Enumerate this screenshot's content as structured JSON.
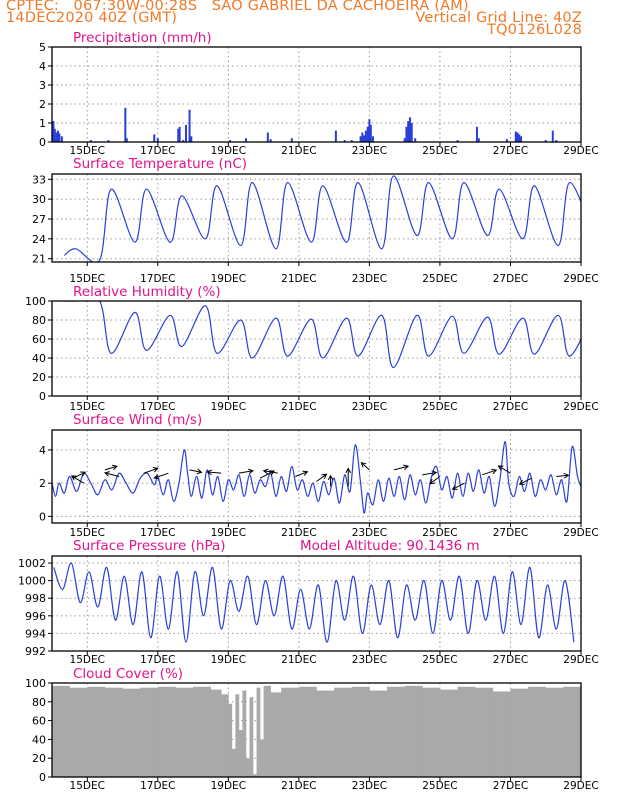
{
  "header": {
    "left_line1": "CPTEC:   067:30W-00:28S   SAO GABRIEL DA CACHOEIRA (AM)",
    "left_line2": "14DEC2020 40Z (GMT)",
    "right_line2": "Vertical Grid Line: 40Z",
    "right_line3": "TQ0126L028"
  },
  "colors": {
    "header": "#f07a28",
    "panel_title": "#e0148c",
    "series": "#2a3fd8",
    "cloud": "#a9a9a9",
    "grid": "#9a9a9a"
  },
  "x_tick_labels": [
    "15DEC",
    "17DEC",
    "19DEC",
    "21DEC",
    "23DEC",
    "25DEC",
    "27DEC",
    "29DEC"
  ],
  "chart_data": [
    {
      "type": "bar",
      "title": "Precipitation (mm/h)",
      "ylim": [
        0,
        5
      ],
      "yticks": [
        0,
        1,
        2,
        3,
        4,
        5
      ],
      "x_range_days": [
        14,
        29
      ],
      "x_tick_days": [
        15,
        17,
        19,
        21,
        23,
        25,
        27,
        29
      ],
      "points": [
        [
          14.04,
          1.1
        ],
        [
          14.08,
          0.7
        ],
        [
          14.13,
          0.5
        ],
        [
          14.17,
          0.6
        ],
        [
          14.21,
          0.45
        ],
        [
          14.28,
          0.3
        ],
        [
          15.1,
          0.1
        ],
        [
          15.6,
          0.1
        ],
        [
          16.08,
          1.8
        ],
        [
          16.12,
          0.2
        ],
        [
          16.9,
          0.4
        ],
        [
          17.0,
          0.2
        ],
        [
          17.58,
          0.7
        ],
        [
          17.62,
          0.8
        ],
        [
          17.72,
          0.1
        ],
        [
          17.8,
          0.9
        ],
        [
          17.9,
          1.7
        ],
        [
          17.95,
          0.3
        ],
        [
          19.05,
          0.1
        ],
        [
          19.5,
          0.2
        ],
        [
          20.12,
          0.5
        ],
        [
          20.2,
          0.15
        ],
        [
          20.8,
          0.2
        ],
        [
          22.05,
          0.6
        ],
        [
          22.3,
          0.1
        ],
        [
          22.5,
          0.1
        ],
        [
          22.75,
          0.3
        ],
        [
          22.8,
          0.5
        ],
        [
          22.85,
          0.35
        ],
        [
          22.9,
          0.6
        ],
        [
          22.95,
          0.8
        ],
        [
          23.0,
          1.2
        ],
        [
          23.04,
          0.9
        ],
        [
          23.1,
          0.3
        ],
        [
          24.0,
          0.2
        ],
        [
          24.05,
          0.8
        ],
        [
          24.1,
          1.1
        ],
        [
          24.15,
          1.3
        ],
        [
          24.2,
          1.0
        ],
        [
          24.3,
          0.2
        ],
        [
          25.5,
          0.1
        ],
        [
          26.05,
          0.8
        ],
        [
          26.1,
          0.2
        ],
        [
          26.9,
          0.15
        ],
        [
          27.15,
          0.55
        ],
        [
          27.2,
          0.5
        ],
        [
          27.25,
          0.4
        ],
        [
          27.3,
          0.3
        ],
        [
          28.0,
          0.1
        ],
        [
          28.2,
          0.6
        ],
        [
          28.3,
          0.1
        ]
      ]
    },
    {
      "type": "line",
      "title": "Surface Temperature (nC)",
      "ylim": [
        20.5,
        33.8
      ],
      "yticks": [
        21,
        24,
        27,
        30,
        33
      ],
      "x_range_days": [
        14,
        29
      ],
      "x_tick_days": [
        15,
        17,
        19,
        21,
        23,
        25,
        27,
        29
      ],
      "daily": {
        "start_day": 14,
        "peak_offset": 0.68,
        "trough_offset": 0.35,
        "peaks": [
          22.5,
          31.5,
          31.5,
          30.5,
          32.0,
          32.5,
          32.5,
          32.0,
          32.5,
          33.5,
          32.5,
          32.5,
          31.5,
          32.0,
          32.5,
          33.5
        ],
        "troughs": [
          21.5,
          20.8,
          23.5,
          23.5,
          24.0,
          23.0,
          22.5,
          23.5,
          23.5,
          22.5,
          24.5,
          24.0,
          24.5,
          24.0,
          23.0,
          24.5
        ]
      }
    },
    {
      "type": "line",
      "title": "Relative Humidity (%)",
      "ylim": [
        0,
        100
      ],
      "yticks": [
        0,
        20,
        40,
        60,
        80,
        100
      ],
      "x_range_days": [
        14,
        29
      ],
      "x_tick_days": [
        15,
        17,
        19,
        21,
        23,
        25,
        27,
        29
      ],
      "daily": {
        "start_day": 14,
        "peak_offset": 0.35,
        "trough_offset": 0.68,
        "peaks": [
          100,
          100,
          88,
          85,
          95,
          80,
          82,
          81,
          82,
          85,
          85,
          84,
          83,
          82,
          85,
          88
        ],
        "troughs": [
          100,
          45,
          48,
          52,
          45,
          40,
          42,
          40,
          42,
          30,
          42,
          45,
          44,
          44,
          42,
          35
        ]
      }
    },
    {
      "type": "line",
      "title": "Surface Wind (m/s)",
      "ylim": [
        -0.4,
        5.2
      ],
      "yticks": [
        0,
        2,
        4
      ],
      "x_range_days": [
        14,
        29
      ],
      "x_tick_days": [
        15,
        17,
        19,
        21,
        23,
        25,
        27,
        29
      ],
      "points": [
        [
          14.0,
          2.0
        ],
        [
          14.1,
          1.2
        ],
        [
          14.2,
          2.0
        ],
        [
          14.35,
          1.4
        ],
        [
          14.5,
          2.4
        ],
        [
          14.7,
          1.5
        ],
        [
          14.9,
          2.6
        ],
        [
          15.1,
          2.0
        ],
        [
          15.3,
          1.3
        ],
        [
          15.5,
          2.2
        ],
        [
          15.7,
          1.6
        ],
        [
          15.9,
          2.6
        ],
        [
          16.1,
          2.0
        ],
        [
          16.3,
          1.4
        ],
        [
          16.5,
          2.3
        ],
        [
          16.7,
          2.6
        ],
        [
          16.9,
          1.9
        ],
        [
          17.0,
          2.4
        ],
        [
          17.15,
          1.3
        ],
        [
          17.3,
          2.2
        ],
        [
          17.45,
          0.9
        ],
        [
          17.6,
          2.0
        ],
        [
          17.75,
          4.0
        ],
        [
          17.85,
          2.5
        ],
        [
          17.95,
          1.2
        ],
        [
          18.1,
          2.4
        ],
        [
          18.25,
          1.1
        ],
        [
          18.4,
          2.8
        ],
        [
          18.55,
          1.3
        ],
        [
          18.7,
          2.4
        ],
        [
          18.85,
          0.9
        ],
        [
          19.0,
          2.2
        ],
        [
          19.15,
          1.6
        ],
        [
          19.3,
          2.5
        ],
        [
          19.45,
          1.2
        ],
        [
          19.6,
          2.5
        ],
        [
          19.75,
          1.4
        ],
        [
          19.9,
          2.2
        ],
        [
          20.05,
          1.8
        ],
        [
          20.2,
          2.6
        ],
        [
          20.35,
          1.2
        ],
        [
          20.5,
          2.4
        ],
        [
          20.65,
          1.5
        ],
        [
          20.8,
          3.0
        ],
        [
          20.95,
          1.6
        ],
        [
          21.1,
          2.2
        ],
        [
          21.25,
          1.2
        ],
        [
          21.4,
          2.0
        ],
        [
          21.55,
          0.9
        ],
        [
          21.7,
          2.1
        ],
        [
          21.85,
          1.3
        ],
        [
          22.0,
          2.3
        ],
        [
          22.15,
          0.8
        ],
        [
          22.3,
          2.5
        ],
        [
          22.45,
          1.5
        ],
        [
          22.6,
          4.3
        ],
        [
          22.75,
          2.0
        ],
        [
          22.85,
          0.2
        ],
        [
          22.95,
          1.4
        ],
        [
          23.1,
          0.7
        ],
        [
          23.25,
          2.2
        ],
        [
          23.4,
          0.9
        ],
        [
          23.55,
          2.3
        ],
        [
          23.7,
          1.2
        ],
        [
          23.85,
          2.4
        ],
        [
          24.0,
          1.0
        ],
        [
          24.15,
          2.5
        ],
        [
          24.3,
          1.3
        ],
        [
          24.45,
          2.2
        ],
        [
          24.6,
          0.8
        ],
        [
          24.75,
          2.3
        ],
        [
          24.9,
          3.0
        ],
        [
          25.05,
          1.6
        ],
        [
          25.2,
          2.4
        ],
        [
          25.35,
          1.1
        ],
        [
          25.5,
          2.6
        ],
        [
          25.65,
          1.2
        ],
        [
          25.8,
          2.6
        ],
        [
          25.95,
          1.5
        ],
        [
          26.1,
          2.8
        ],
        [
          26.25,
          1.4
        ],
        [
          26.4,
          2.4
        ],
        [
          26.55,
          0.6
        ],
        [
          26.7,
          2.2
        ],
        [
          26.85,
          4.5
        ],
        [
          26.95,
          2.0
        ],
        [
          27.1,
          1.2
        ],
        [
          27.25,
          2.4
        ],
        [
          27.4,
          1.5
        ],
        [
          27.55,
          2.6
        ],
        [
          27.7,
          1.2
        ],
        [
          27.85,
          2.2
        ],
        [
          28.0,
          1.6
        ],
        [
          28.15,
          2.5
        ],
        [
          28.3,
          1.3
        ],
        [
          28.45,
          2.2
        ],
        [
          28.6,
          0.9
        ],
        [
          28.75,
          4.2
        ],
        [
          28.9,
          2.4
        ],
        [
          29.0,
          1.8
        ]
      ],
      "arrows": [
        [
          14.6,
          2.3,
          0.3,
          0.25
        ],
        [
          14.9,
          2.0,
          -0.3,
          0.3
        ],
        [
          15.5,
          2.8,
          0.3,
          0.15
        ],
        [
          15.9,
          2.4,
          -0.35,
          0.15
        ],
        [
          16.6,
          2.6,
          0.35,
          0.2
        ],
        [
          17.3,
          2.6,
          -0.35,
          -0.2
        ],
        [
          17.9,
          2.8,
          0.3,
          -0.1
        ],
        [
          18.8,
          2.6,
          -0.35,
          0.05
        ],
        [
          19.3,
          2.6,
          0.35,
          0.1
        ],
        [
          19.9,
          2.3,
          0.35,
          0.3
        ],
        [
          20.4,
          2.6,
          -0.35,
          0.1
        ],
        [
          20.9,
          2.4,
          0.3,
          0.2
        ],
        [
          21.5,
          2.1,
          0.25,
          0.3
        ],
        [
          21.9,
          1.8,
          0.0,
          0.45
        ],
        [
          22.4,
          1.8,
          0.0,
          0.75
        ],
        [
          23.0,
          2.8,
          -0.2,
          0.3
        ],
        [
          23.7,
          2.8,
          0.35,
          0.15
        ],
        [
          24.5,
          2.5,
          0.35,
          0.1
        ],
        [
          25.0,
          2.4,
          -0.25,
          -0.3
        ],
        [
          25.7,
          2.0,
          -0.3,
          -0.25
        ],
        [
          26.2,
          2.5,
          0.35,
          0.2
        ],
        [
          27.0,
          2.6,
          -0.3,
          0.3
        ],
        [
          27.6,
          2.3,
          -0.3,
          -0.25
        ],
        [
          28.3,
          2.4,
          0.3,
          0.05
        ]
      ]
    },
    {
      "type": "line",
      "title": "Surface Pressure (hPa)",
      "annotation": "Model Altitude: 90.1436 m",
      "ylim": [
        992,
        1002.8
      ],
      "yticks": [
        992,
        994,
        996,
        998,
        1000,
        1002
      ],
      "x_range_days": [
        14,
        29
      ],
      "x_tick_days": [
        15,
        17,
        19,
        21,
        23,
        25,
        27,
        29
      ],
      "semi_diurnal": {
        "start_day": 14,
        "max_offsets": [
          0.55,
          1.05
        ],
        "min_offsets": [
          0.8,
          1.3
        ],
        "max": [
          1002.0,
          1001.5,
          1001.0,
          1001.0,
          1001.5,
          1000.5,
          1000.5,
          999.5,
          1000.5,
          1000.0,
          1000.0,
          1000.5,
          1000.5,
          1001.5,
          1000.0
        ],
        "min": [
          997.5,
          995.5,
          993.5,
          993.0,
          994.5,
          995.0,
          994.5,
          993.0,
          994.0,
          993.5,
          994.0,
          994.0,
          994.0,
          993.5,
          993.0
        ]
      }
    },
    {
      "type": "bar",
      "title": "Cloud Cover (%)",
      "ylim": [
        0,
        100
      ],
      "yticks": [
        0,
        20,
        40,
        60,
        80,
        100
      ],
      "x_range_days": [
        14,
        29
      ],
      "x_tick_days": [
        15,
        17,
        19,
        21,
        23,
        25,
        27,
        29
      ],
      "segments": [
        [
          14.0,
          97
        ],
        [
          14.5,
          95
        ],
        [
          15.0,
          96
        ],
        [
          15.5,
          95
        ],
        [
          16.0,
          94
        ],
        [
          16.5,
          95
        ],
        [
          17.0,
          96
        ],
        [
          17.5,
          95
        ],
        [
          18.0,
          96
        ],
        [
          18.5,
          93
        ],
        [
          18.8,
          88
        ],
        [
          19.0,
          78
        ],
        [
          19.1,
          30
        ],
        [
          19.2,
          88
        ],
        [
          19.3,
          50
        ],
        [
          19.4,
          92
        ],
        [
          19.5,
          20
        ],
        [
          19.6,
          85
        ],
        [
          19.7,
          3
        ],
        [
          19.8,
          95
        ],
        [
          19.9,
          40
        ],
        [
          20.0,
          97
        ],
        [
          20.2,
          90
        ],
        [
          20.5,
          95
        ],
        [
          21.0,
          96
        ],
        [
          21.5,
          92
        ],
        [
          22.0,
          95
        ],
        [
          22.5,
          96
        ],
        [
          23.0,
          92
        ],
        [
          23.5,
          96
        ],
        [
          24.0,
          97
        ],
        [
          24.5,
          95
        ],
        [
          25.0,
          93
        ],
        [
          25.5,
          96
        ],
        [
          26.0,
          95
        ],
        [
          26.5,
          91
        ],
        [
          27.0,
          94
        ],
        [
          27.5,
          96
        ],
        [
          28.0,
          95
        ],
        [
          28.5,
          96
        ],
        [
          29.0,
          96
        ]
      ]
    }
  ]
}
